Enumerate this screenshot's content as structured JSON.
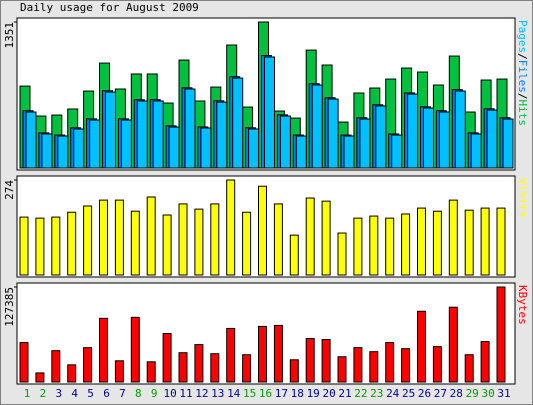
{
  "chart_data": [
    {
      "type": "bar",
      "title": "Daily usage for August 2009",
      "categories": [
        "1",
        "2",
        "3",
        "4",
        "5",
        "6",
        "7",
        "8",
        "9",
        "10",
        "11",
        "12",
        "13",
        "14",
        "15",
        "16",
        "17",
        "18",
        "19",
        "20",
        "21",
        "22",
        "23",
        "24",
        "25",
        "26",
        "27",
        "28",
        "29",
        "30",
        "31"
      ],
      "weekend": [
        true,
        true,
        false,
        false,
        false,
        false,
        false,
        true,
        true,
        false,
        false,
        false,
        false,
        false,
        true,
        true,
        false,
        false,
        false,
        false,
        false,
        true,
        true,
        false,
        false,
        false,
        false,
        false,
        true,
        true,
        false
      ],
      "weekend_color": "#00a000",
      "weekday_color": "#0000a0",
      "legend_separator": "/",
      "series": [
        {
          "name": "Pages",
          "color": "#00c0ff",
          "values": [
            518,
            315,
            296,
            361,
            444,
            703,
            444,
            620,
            620,
            379,
            731,
            370,
            610,
            832,
            361,
            1027,
            481,
            296,
            768,
            638,
            296,
            453,
            574,
            305,
            684,
            555,
            518,
            712,
            315,
            536,
            453
          ]
        },
        {
          "name": "Files",
          "color": "#0080ff",
          "values": [
            530,
            325,
            305,
            372,
            455,
            715,
            455,
            632,
            632,
            390,
            742,
            380,
            622,
            845,
            372,
            1040,
            492,
            305,
            780,
            650,
            305,
            465,
            585,
            315,
            695,
            566,
            530,
            725,
            325,
            548,
            465
          ]
        },
        {
          "name": "Hits",
          "color": "#00c040",
          "values": [
            758,
            481,
            490,
            546,
            712,
            971,
            731,
            870,
            870,
            601,
            999,
            620,
            749,
            1138,
            564,
            1351,
            527,
            462,
            1091,
            953,
            425,
            694,
            740,
            823,
            925,
            888,
            768,
            1036,
            518,
            814,
            823
          ]
        }
      ],
      "ylim": [
        0,
        1351
      ],
      "yticks": [
        1351
      ]
    },
    {
      "type": "bar",
      "series": [
        {
          "name": "Visits",
          "color": "#ffff00",
          "values": [
            167,
            164,
            167,
            181,
            199,
            216,
            216,
            184,
            225,
            173,
            205,
            190,
            205,
            274,
            181,
            256,
            205,
            115,
            222,
            213,
            121,
            164,
            170,
            164,
            176,
            193,
            184,
            216,
            187,
            193,
            193
          ]
        }
      ],
      "ylim": [
        0,
        274
      ],
      "yticks": [
        274
      ]
    },
    {
      "type": "bar",
      "series": [
        {
          "name": "KBytes",
          "color": "#ff0000",
          "values": [
            52845,
            12195,
            42005,
            23035,
            46070,
            85365,
            28455,
            86720,
            27100,
            65040,
            39295,
            50135,
            37940,
            71815,
            36585,
            74525,
            75880,
            29810,
            58265,
            56910,
            33875,
            46070,
            40650,
            52845,
            44715,
            94850,
            47425,
            100270,
            36585,
            54200,
            127385
          ]
        }
      ],
      "ylim": [
        0,
        127385
      ],
      "yticks": [
        127385
      ]
    }
  ]
}
